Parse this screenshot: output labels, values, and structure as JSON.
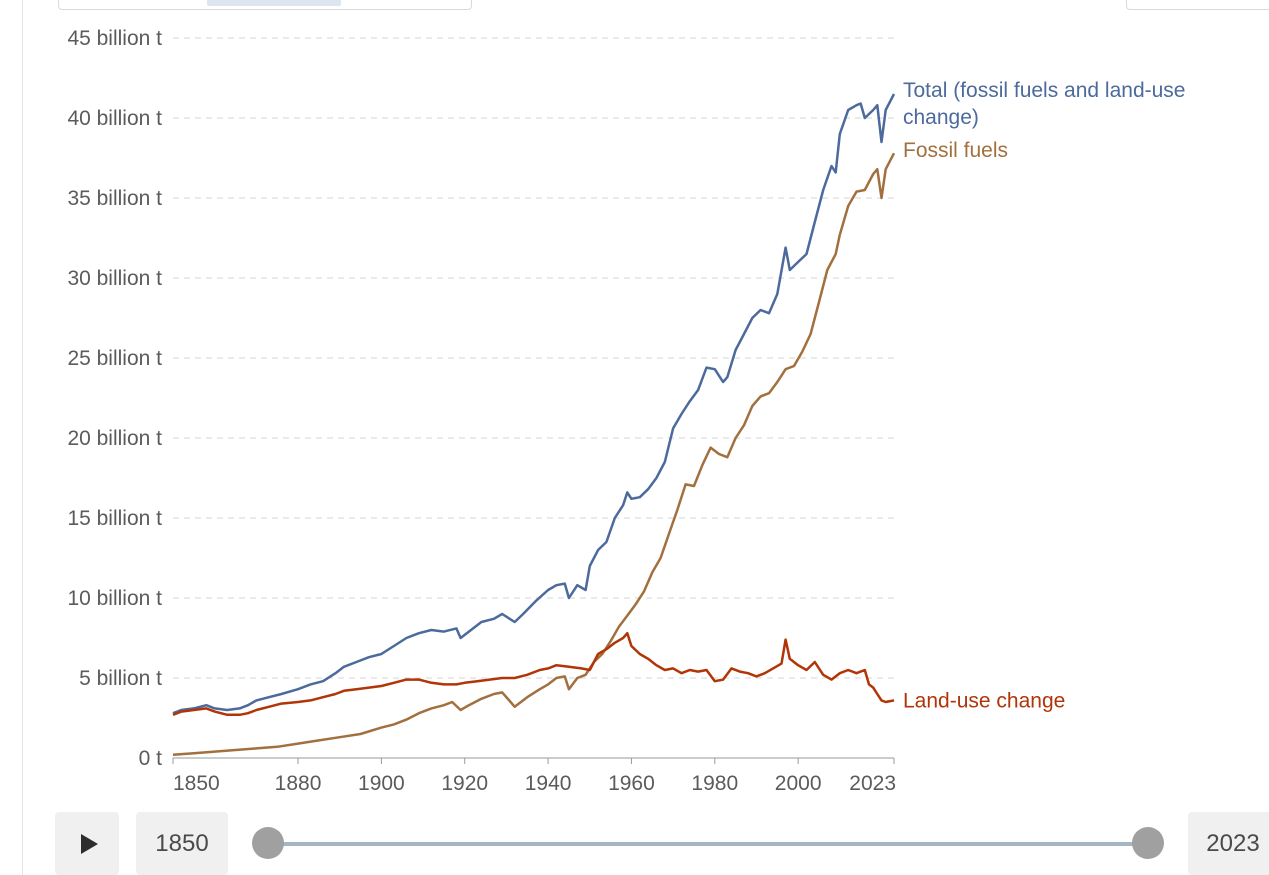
{
  "chart_data": {
    "type": "line",
    "title": "",
    "xlabel": "",
    "ylabel": "",
    "xlim": [
      1850,
      2023
    ],
    "ylim": [
      0,
      45
    ],
    "y_unit": "billion t",
    "grid": "horizontal dashed",
    "x_ticks": [
      {
        "value": 1850,
        "label": "1850"
      },
      {
        "value": 1880,
        "label": "1880"
      },
      {
        "value": 1900,
        "label": "1900"
      },
      {
        "value": 1920,
        "label": "1920"
      },
      {
        "value": 1940,
        "label": "1940"
      },
      {
        "value": 1960,
        "label": "1960"
      },
      {
        "value": 1980,
        "label": "1980"
      },
      {
        "value": 2000,
        "label": "2000"
      },
      {
        "value": 2023,
        "label": "2023"
      }
    ],
    "y_ticks": [
      {
        "value": 0,
        "label": "0 t"
      },
      {
        "value": 5,
        "label": "5 billion t"
      },
      {
        "value": 10,
        "label": "10 billion t"
      },
      {
        "value": 15,
        "label": "15 billion t"
      },
      {
        "value": 20,
        "label": "20 billion t"
      },
      {
        "value": 25,
        "label": "25 billion t"
      },
      {
        "value": 30,
        "label": "30 billion t"
      },
      {
        "value": 35,
        "label": "35 billion t"
      },
      {
        "value": 40,
        "label": "40 billion t"
      },
      {
        "value": 45,
        "label": "45 billion t"
      }
    ],
    "series": [
      {
        "name": "Total (fossil fuels and land-use change)",
        "label_lines": [
          "Total (fossil fuels and land-use",
          "change)"
        ],
        "color": "#4c6a9c",
        "points": [
          [
            1850,
            2.8
          ],
          [
            1852,
            3.0
          ],
          [
            1855,
            3.1
          ],
          [
            1858,
            3.3
          ],
          [
            1860,
            3.1
          ],
          [
            1863,
            3.0
          ],
          [
            1866,
            3.1
          ],
          [
            1868,
            3.3
          ],
          [
            1870,
            3.6
          ],
          [
            1873,
            3.8
          ],
          [
            1876,
            4.0
          ],
          [
            1880,
            4.3
          ],
          [
            1883,
            4.6
          ],
          [
            1886,
            4.8
          ],
          [
            1889,
            5.3
          ],
          [
            1891,
            5.7
          ],
          [
            1894,
            6.0
          ],
          [
            1897,
            6.3
          ],
          [
            1900,
            6.5
          ],
          [
            1903,
            7.0
          ],
          [
            1906,
            7.5
          ],
          [
            1909,
            7.8
          ],
          [
            1912,
            8.0
          ],
          [
            1915,
            7.9
          ],
          [
            1918,
            8.1
          ],
          [
            1919,
            7.5
          ],
          [
            1921,
            7.9
          ],
          [
            1924,
            8.5
          ],
          [
            1927,
            8.7
          ],
          [
            1929,
            9.0
          ],
          [
            1932,
            8.5
          ],
          [
            1934,
            9.0
          ],
          [
            1937,
            9.8
          ],
          [
            1940,
            10.5
          ],
          [
            1942,
            10.8
          ],
          [
            1944,
            10.9
          ],
          [
            1945,
            10.0
          ],
          [
            1947,
            10.8
          ],
          [
            1949,
            10.5
          ],
          [
            1950,
            12.0
          ],
          [
            1952,
            13.0
          ],
          [
            1954,
            13.5
          ],
          [
            1956,
            15.0
          ],
          [
            1958,
            15.8
          ],
          [
            1959,
            16.6
          ],
          [
            1960,
            16.2
          ],
          [
            1962,
            16.3
          ],
          [
            1964,
            16.8
          ],
          [
            1966,
            17.5
          ],
          [
            1968,
            18.5
          ],
          [
            1970,
            20.6
          ],
          [
            1972,
            21.5
          ],
          [
            1974,
            22.3
          ],
          [
            1976,
            23.0
          ],
          [
            1978,
            24.4
          ],
          [
            1980,
            24.3
          ],
          [
            1982,
            23.5
          ],
          [
            1983,
            23.8
          ],
          [
            1985,
            25.5
          ],
          [
            1987,
            26.5
          ],
          [
            1989,
            27.5
          ],
          [
            1991,
            28.0
          ],
          [
            1993,
            27.8
          ],
          [
            1995,
            29.0
          ],
          [
            1997,
            31.9
          ],
          [
            1998,
            30.5
          ],
          [
            2000,
            31.0
          ],
          [
            2002,
            31.5
          ],
          [
            2004,
            33.5
          ],
          [
            2006,
            35.5
          ],
          [
            2008,
            37.0
          ],
          [
            2009,
            36.6
          ],
          [
            2010,
            39.0
          ],
          [
            2012,
            40.5
          ],
          [
            2014,
            40.8
          ],
          [
            2015,
            40.9
          ],
          [
            2016,
            40.0
          ],
          [
            2018,
            40.5
          ],
          [
            2019,
            40.8
          ],
          [
            2020,
            38.5
          ],
          [
            2021,
            40.5
          ],
          [
            2023,
            41.5
          ]
        ]
      },
      {
        "name": "Fossil fuels",
        "label_lines": [
          "Fossil fuels"
        ],
        "color": "#a2703e",
        "points": [
          [
            1850,
            0.2
          ],
          [
            1855,
            0.3
          ],
          [
            1860,
            0.4
          ],
          [
            1865,
            0.5
          ],
          [
            1870,
            0.6
          ],
          [
            1875,
            0.7
          ],
          [
            1880,
            0.9
          ],
          [
            1885,
            1.1
          ],
          [
            1890,
            1.3
          ],
          [
            1895,
            1.5
          ],
          [
            1900,
            1.9
          ],
          [
            1903,
            2.1
          ],
          [
            1906,
            2.4
          ],
          [
            1909,
            2.8
          ],
          [
            1912,
            3.1
          ],
          [
            1915,
            3.3
          ],
          [
            1917,
            3.5
          ],
          [
            1919,
            3.0
          ],
          [
            1921,
            3.3
          ],
          [
            1924,
            3.7
          ],
          [
            1927,
            4.0
          ],
          [
            1929,
            4.1
          ],
          [
            1931,
            3.5
          ],
          [
            1932,
            3.2
          ],
          [
            1935,
            3.8
          ],
          [
            1938,
            4.3
          ],
          [
            1940,
            4.6
          ],
          [
            1942,
            5.0
          ],
          [
            1944,
            5.1
          ],
          [
            1945,
            4.3
          ],
          [
            1947,
            5.0
          ],
          [
            1949,
            5.2
          ],
          [
            1951,
            6.0
          ],
          [
            1953,
            6.5
          ],
          [
            1955,
            7.3
          ],
          [
            1957,
            8.2
          ],
          [
            1959,
            8.9
          ],
          [
            1961,
            9.6
          ],
          [
            1963,
            10.4
          ],
          [
            1965,
            11.6
          ],
          [
            1967,
            12.5
          ],
          [
            1969,
            14.0
          ],
          [
            1971,
            15.5
          ],
          [
            1973,
            17.1
          ],
          [
            1975,
            17.0
          ],
          [
            1977,
            18.3
          ],
          [
            1979,
            19.4
          ],
          [
            1981,
            19.0
          ],
          [
            1983,
            18.8
          ],
          [
            1985,
            20.0
          ],
          [
            1987,
            20.8
          ],
          [
            1989,
            22.0
          ],
          [
            1991,
            22.6
          ],
          [
            1993,
            22.8
          ],
          [
            1995,
            23.5
          ],
          [
            1997,
            24.3
          ],
          [
            1999,
            24.5
          ],
          [
            2001,
            25.4
          ],
          [
            2003,
            26.5
          ],
          [
            2005,
            28.5
          ],
          [
            2007,
            30.5
          ],
          [
            2009,
            31.5
          ],
          [
            2010,
            32.7
          ],
          [
            2012,
            34.5
          ],
          [
            2014,
            35.4
          ],
          [
            2016,
            35.5
          ],
          [
            2018,
            36.5
          ],
          [
            2019,
            36.8
          ],
          [
            2020,
            35.0
          ],
          [
            2021,
            36.8
          ],
          [
            2023,
            37.8
          ]
        ]
      },
      {
        "name": "Land-use change",
        "label_lines": [
          "Land-use change"
        ],
        "color": "#b13507",
        "points": [
          [
            1850,
            2.7
          ],
          [
            1852,
            2.9
          ],
          [
            1855,
            3.0
          ],
          [
            1858,
            3.1
          ],
          [
            1860,
            2.9
          ],
          [
            1863,
            2.7
          ],
          [
            1866,
            2.7
          ],
          [
            1868,
            2.8
          ],
          [
            1870,
            3.0
          ],
          [
            1873,
            3.2
          ],
          [
            1876,
            3.4
          ],
          [
            1880,
            3.5
          ],
          [
            1883,
            3.6
          ],
          [
            1886,
            3.8
          ],
          [
            1889,
            4.0
          ],
          [
            1891,
            4.2
          ],
          [
            1894,
            4.3
          ],
          [
            1897,
            4.4
          ],
          [
            1900,
            4.5
          ],
          [
            1903,
            4.7
          ],
          [
            1906,
            4.9
          ],
          [
            1909,
            4.9
          ],
          [
            1912,
            4.7
          ],
          [
            1915,
            4.6
          ],
          [
            1918,
            4.6
          ],
          [
            1920,
            4.7
          ],
          [
            1923,
            4.8
          ],
          [
            1926,
            4.9
          ],
          [
            1929,
            5.0
          ],
          [
            1932,
            5.0
          ],
          [
            1935,
            5.2
          ],
          [
            1938,
            5.5
          ],
          [
            1940,
            5.6
          ],
          [
            1942,
            5.8
          ],
          [
            1945,
            5.7
          ],
          [
            1948,
            5.6
          ],
          [
            1950,
            5.5
          ],
          [
            1952,
            6.5
          ],
          [
            1954,
            6.8
          ],
          [
            1956,
            7.2
          ],
          [
            1958,
            7.5
          ],
          [
            1959,
            7.8
          ],
          [
            1960,
            7.0
          ],
          [
            1962,
            6.5
          ],
          [
            1964,
            6.2
          ],
          [
            1966,
            5.8
          ],
          [
            1968,
            5.5
          ],
          [
            1970,
            5.6
          ],
          [
            1972,
            5.3
          ],
          [
            1974,
            5.5
          ],
          [
            1976,
            5.4
          ],
          [
            1978,
            5.5
          ],
          [
            1980,
            4.8
          ],
          [
            1982,
            4.9
          ],
          [
            1984,
            5.6
          ],
          [
            1986,
            5.4
          ],
          [
            1988,
            5.3
          ],
          [
            1990,
            5.1
          ],
          [
            1992,
            5.3
          ],
          [
            1994,
            5.6
          ],
          [
            1996,
            5.9
          ],
          [
            1997,
            7.4
          ],
          [
            1998,
            6.2
          ],
          [
            2000,
            5.8
          ],
          [
            2002,
            5.5
          ],
          [
            2004,
            6.0
          ],
          [
            2006,
            5.2
          ],
          [
            2008,
            4.9
          ],
          [
            2010,
            5.3
          ],
          [
            2012,
            5.5
          ],
          [
            2014,
            5.3
          ],
          [
            2016,
            5.5
          ],
          [
            2017,
            4.6
          ],
          [
            2018,
            4.4
          ],
          [
            2019,
            4.0
          ],
          [
            2020,
            3.6
          ],
          [
            2021,
            3.5
          ],
          [
            2023,
            3.6
          ]
        ]
      }
    ]
  },
  "timeline": {
    "start_year": "1850",
    "end_year": "2023"
  }
}
